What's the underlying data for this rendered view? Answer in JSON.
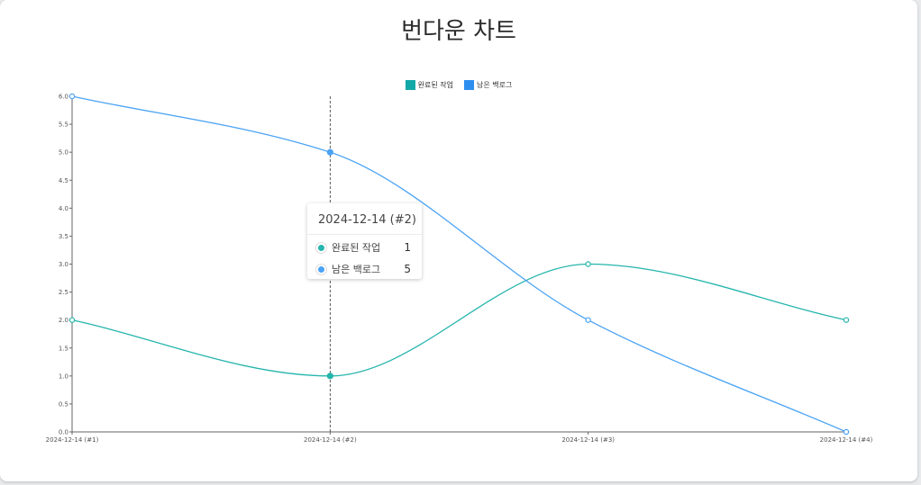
{
  "title": "번다운 차트",
  "chart_data": {
    "type": "line",
    "title": "번다운 차트",
    "categories": [
      "2024-12-14 (#1)",
      "2024-12-14 (#2)",
      "2024-12-14 (#3)",
      "2024-12-14 (#4)"
    ],
    "series": [
      {
        "name": "완료된 작업",
        "color": "#26b5ad",
        "values": [
          2,
          1,
          3,
          2
        ]
      },
      {
        "name": "남은 백로그",
        "color": "#4aa3f5",
        "values": [
          6,
          5,
          2,
          0
        ]
      }
    ],
    "ylim": [
      0,
      6
    ],
    "yticks": [
      "0.0",
      "0.5",
      "1.0",
      "1.5",
      "2.0",
      "2.5",
      "3.0",
      "3.5",
      "4.0",
      "4.5",
      "5.0",
      "5.5",
      "6.0"
    ],
    "xlabel": "",
    "ylabel": "",
    "legend_position": "top-center",
    "grid": false,
    "curve": "smooth"
  },
  "legend": {
    "items": [
      {
        "label": "완료된 작업",
        "color": "#12a8a8"
      },
      {
        "label": "남은 백로그",
        "color": "#2e8ef0"
      }
    ]
  },
  "tooltip": {
    "title": "2024-12-14 (#2)",
    "rows": [
      {
        "label": "완료된 작업",
        "value": "1",
        "color": "#26b5ad"
      },
      {
        "label": "남은 백로그",
        "value": "5",
        "color": "#4aa3f5"
      }
    ]
  },
  "crosshair_category": "2024-12-14 (#2)"
}
